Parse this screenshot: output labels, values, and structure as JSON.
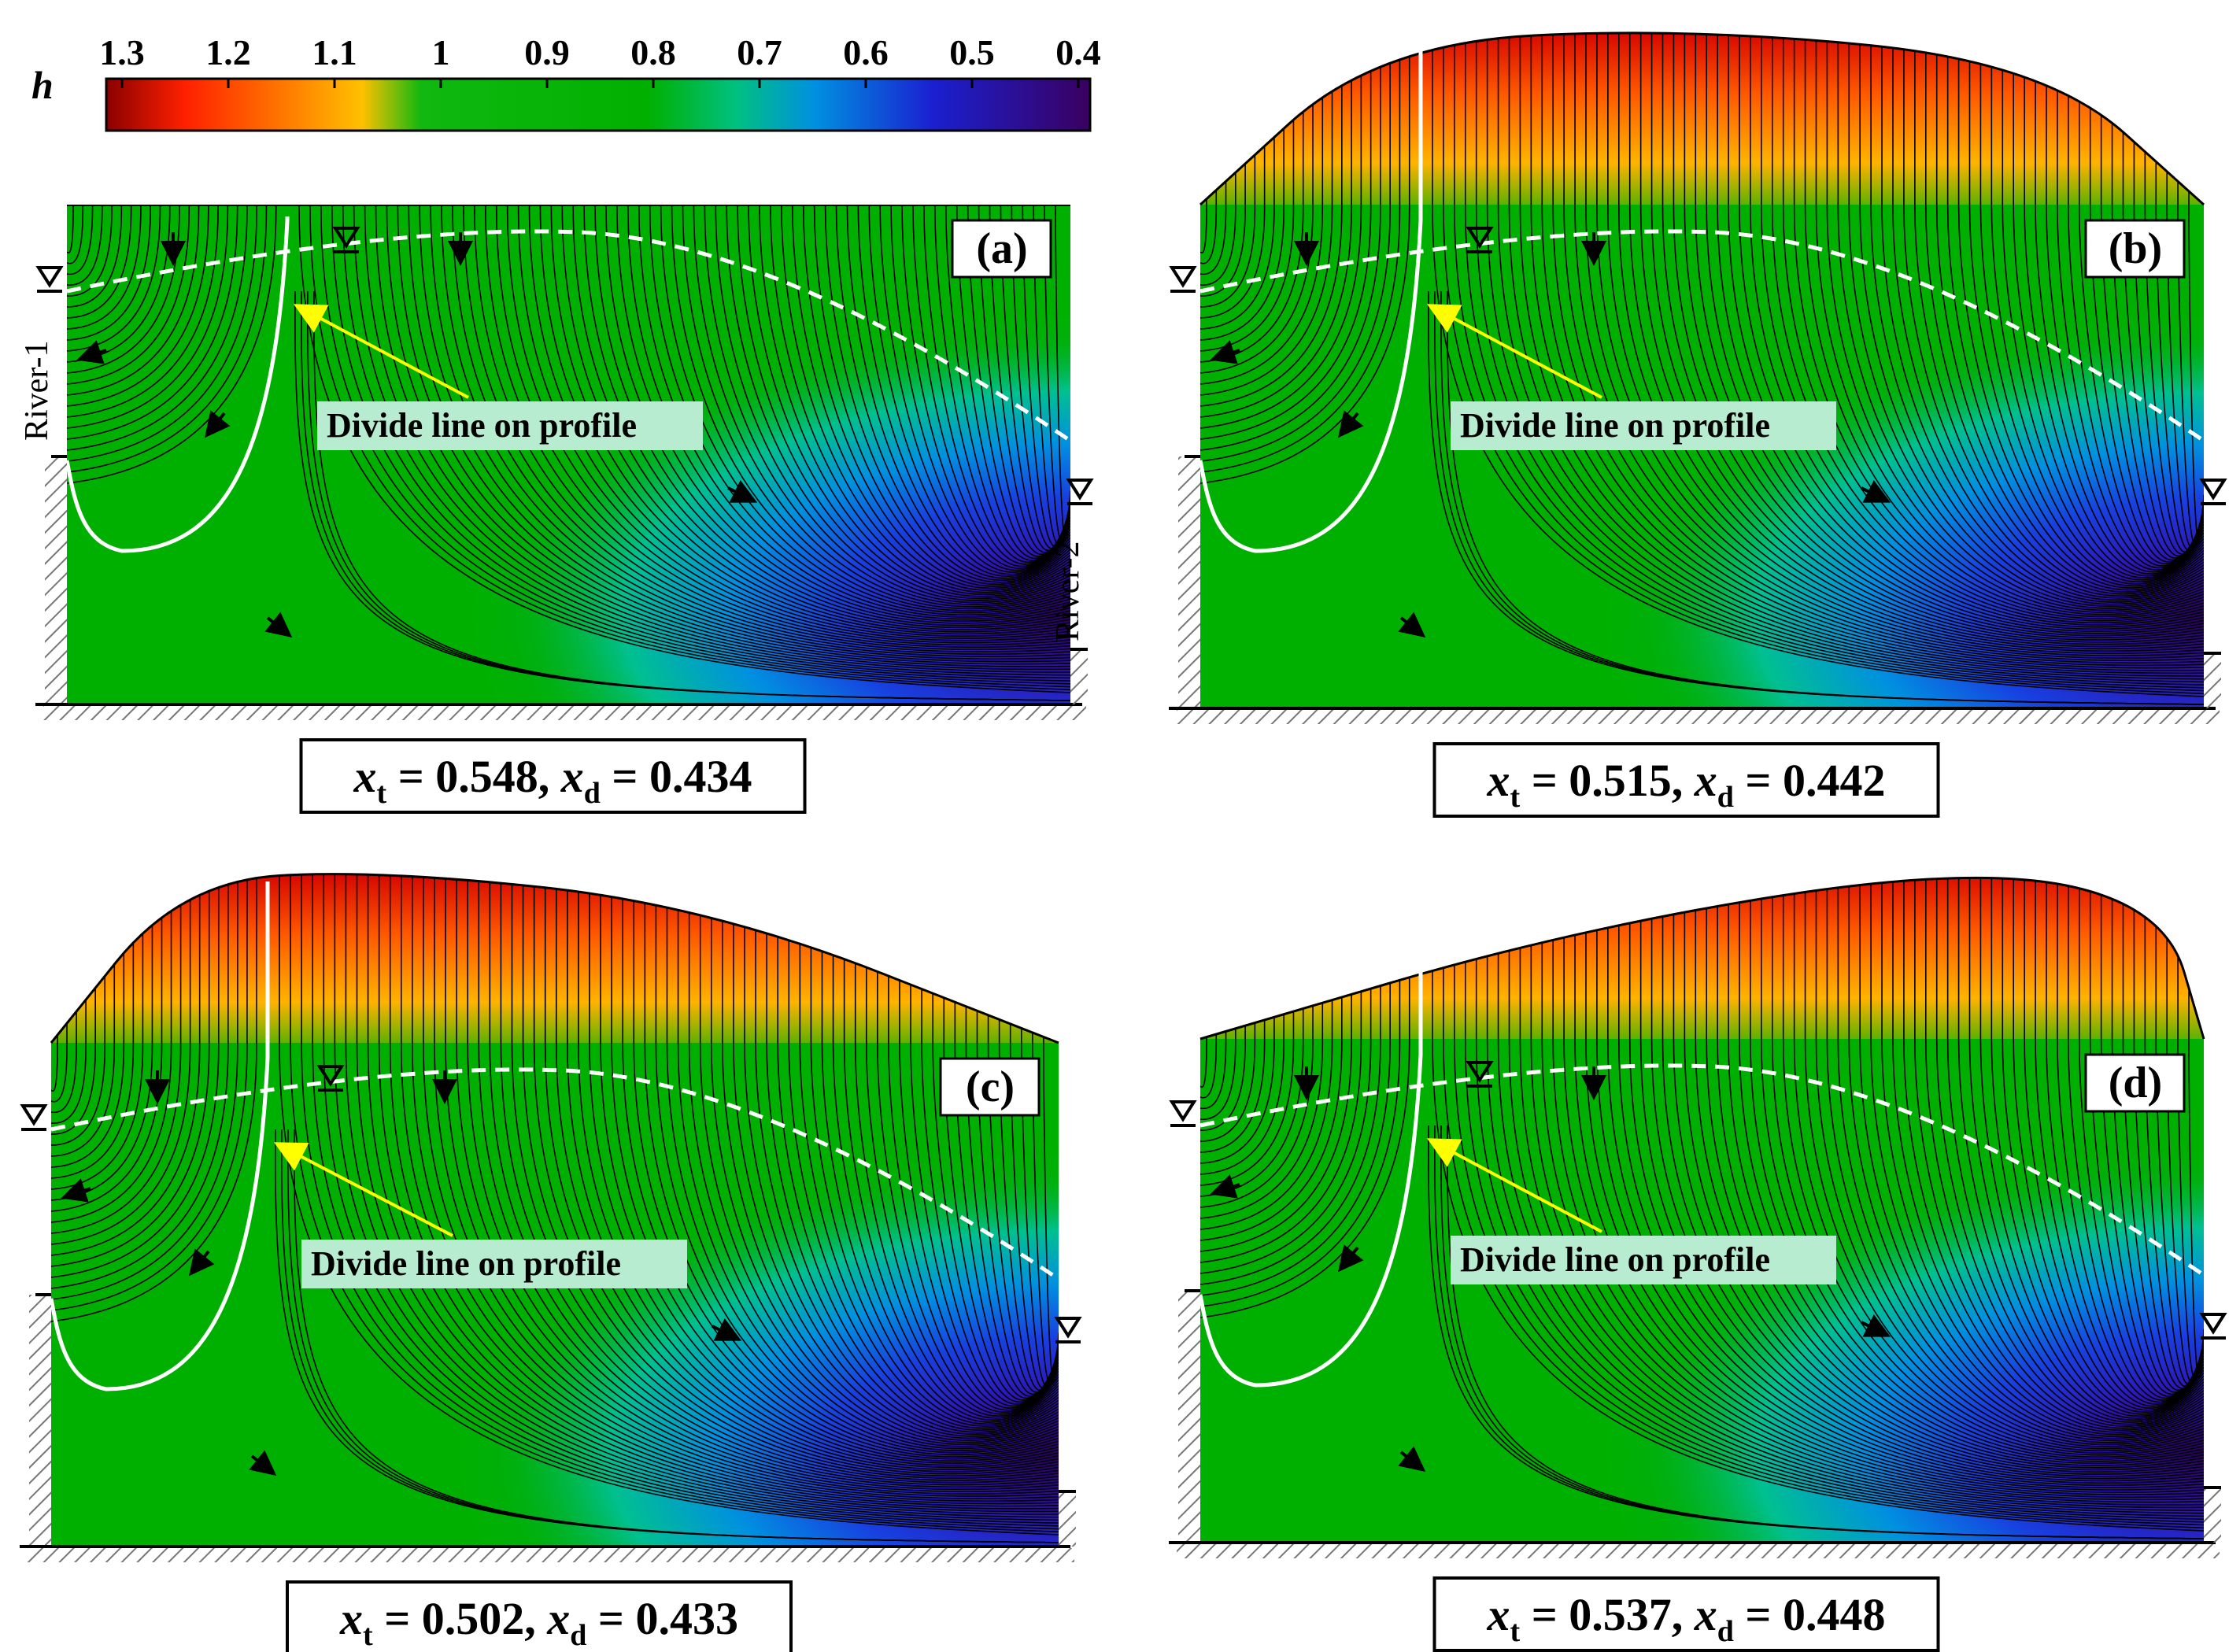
{
  "colorbar": {
    "symbol": "h",
    "ticks": [
      "1.3",
      "1.2",
      "1.1",
      "1",
      "0.9",
      "0.8",
      "0.7",
      "0.6",
      "0.5",
      "0.4"
    ],
    "colors": [
      "#d40000",
      "#ff3300",
      "#ffb000",
      "#10bb10",
      "#00b400",
      "#00ba30",
      "#00c0a0",
      "#0090e0",
      "#2020d0",
      "#3a0090"
    ]
  },
  "panels": [
    {
      "label": "(a)",
      "xt": "0.548",
      "xd": "0.434",
      "divide_text": "Divide line on profile",
      "river1": "River-1",
      "river2": "River-2"
    },
    {
      "label": "(b)",
      "xt": "0.515",
      "xd": "0.442",
      "divide_text": "Divide line on profile"
    },
    {
      "label": "(c)",
      "xt": "0.502",
      "xd": "0.433",
      "divide_text": "Divide line on profile"
    },
    {
      "label": "(d)",
      "xt": "0.537",
      "xd": "0.448",
      "divide_text": "Divide line on profile"
    }
  ],
  "caption_vars": {
    "xt_sym": "x",
    "xt_sub": "t",
    "xd_sym": "x",
    "xd_sub": "d"
  },
  "colors": {
    "divide_line": "#ffffff",
    "water_table": "#ffffff",
    "arrow_label": "#ffff00",
    "label_box": "#b8ecd0"
  }
}
